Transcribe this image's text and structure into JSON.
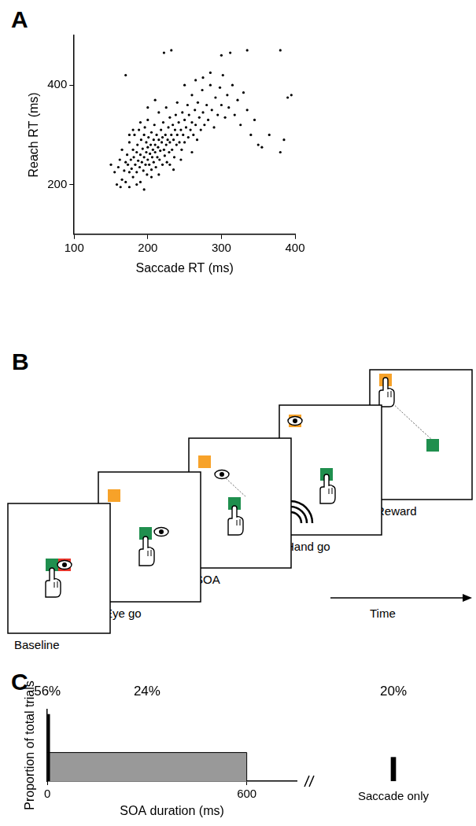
{
  "chart_data": [
    {
      "type": "scatter",
      "title": "A",
      "xlabel": "Saccade RT (ms)",
      "ylabel": "Reach RT (ms)",
      "x": [
        160,
        162,
        165,
        165,
        168,
        170,
        170,
        172,
        173,
        175,
        175,
        177,
        178,
        180,
        180,
        181,
        182,
        183,
        185,
        185,
        186,
        187,
        188,
        189,
        190,
        190,
        191,
        192,
        193,
        194,
        195,
        195,
        196,
        197,
        198,
        198,
        199,
        200,
        200,
        200,
        201,
        202,
        203,
        204,
        205,
        205,
        206,
        207,
        208,
        208,
        209,
        210,
        210,
        211,
        212,
        213,
        214,
        215,
        215,
        216,
        217,
        218,
        219,
        220,
        220,
        221,
        222,
        223,
        224,
        225,
        225,
        226,
        227,
        228,
        229,
        230,
        230,
        232,
        233,
        234,
        235,
        236,
        237,
        238,
        239,
        240,
        240,
        242,
        243,
        245,
        246,
        247,
        248,
        250,
        250,
        252,
        254,
        255,
        256,
        258,
        260,
        260,
        262,
        264,
        265,
        267,
        268,
        270,
        272,
        274,
        275,
        277,
        280,
        282,
        285,
        287,
        290,
        292,
        295,
        298,
        300,
        302,
        305,
        308,
        310,
        315,
        318,
        322,
        326,
        330,
        335,
        340,
        345,
        350,
        355,
        365,
        380,
        385,
        390,
        395,
        170,
        222,
        232,
        300,
        312,
        335,
        380,
        275,
        150,
        155,
        158,
        163,
        175,
        185,
        195,
        205,
        215,
        230,
        245,
        260,
        235,
        190,
        180,
        175,
        250,
        265,
        285,
        210,
        200
      ],
      "values": [
        235,
        250,
        210,
        270,
        228,
        245,
        205,
        260,
        240,
        225,
        285,
        250,
        232,
        215,
        270,
        255,
        300,
        240,
        225,
        265,
        280,
        248,
        310,
        235,
        205,
        260,
        290,
        245,
        272,
        228,
        255,
        300,
        315,
        240,
        265,
        285,
        220,
        250,
        275,
        330,
        295,
        240,
        262,
        280,
        230,
        305,
        255,
        270,
        290,
        245,
        320,
        265,
        280,
        235,
        300,
        255,
        275,
        290,
        345,
        250,
        268,
        310,
        285,
        240,
        295,
        325,
        270,
        258,
        300,
        280,
        355,
        245,
        290,
        315,
        265,
        285,
        335,
        300,
        270,
        320,
        290,
        255,
        310,
        340,
        280,
        300,
        365,
        325,
        285,
        310,
        270,
        345,
        300,
        330,
        285,
        315,
        360,
        295,
        340,
        310,
        325,
        380,
        300,
        350,
        320,
        290,
        365,
        335,
        310,
        390,
        345,
        320,
        360,
        330,
        400,
        350,
        315,
        375,
        340,
        395,
        360,
        420,
        335,
        380,
        355,
        400,
        340,
        370,
        320,
        385,
        350,
        300,
        330,
        280,
        275,
        300,
        265,
        290,
        375,
        380,
        420,
        465,
        470,
        460,
        465,
        470,
        470,
        415,
        240,
        225,
        200,
        195,
        195,
        200,
        190,
        215,
        220,
        240,
        250,
        265,
        230,
        325,
        310,
        300,
        400,
        410,
        425,
        370,
        355
      ],
      "xlim": [
        100,
        400
      ],
      "xticks": [
        100,
        200,
        300,
        400
      ],
      "ylim": [
        100,
        500
      ],
      "yticks": [
        200,
        400
      ],
      "color": "#000000",
      "marker": "circle",
      "grid": false
    },
    {
      "type": "bar",
      "title": "C",
      "xlabel": "SOA duration (ms)",
      "ylabel": "Proportion of total trials",
      "xlim": [
        0,
        750
      ],
      "xticks": [
        0,
        600
      ],
      "ylim": [
        0,
        60
      ],
      "tick_labels": "x",
      "grid": false,
      "data_labels": true,
      "color": "#000000",
      "spike": {
        "x": 0,
        "value": 56,
        "value_label": "56%"
      },
      "uniform": {
        "from": 0,
        "to": 600,
        "value": 24,
        "value_label": "24%",
        "color": "#999999"
      },
      "side": {
        "categories": [
          "Saccade only"
        ],
        "values": [
          20
        ],
        "value_labels": [
          "20%"
        ]
      }
    }
  ],
  "diagram": {
    "title": "B",
    "frames": [
      "Baseline",
      "Eye go",
      "SOA",
      "Hand go",
      "Reward"
    ],
    "time_label": "Time"
  }
}
